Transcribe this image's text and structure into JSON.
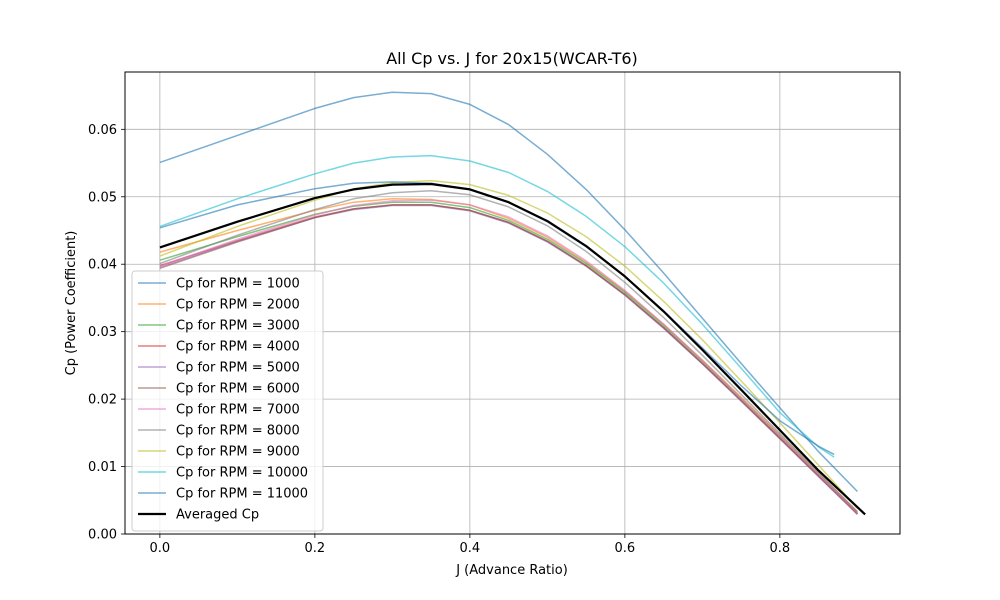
{
  "chart_data": {
    "type": "line",
    "title": "All Cp vs. J for 20x15(WCAR-T6)",
    "xlabel": "J (Advance Ratio)",
    "ylabel": "Cp (Power Coefficient)",
    "xlim": [
      -0.045,
      0.955
    ],
    "ylim": [
      0.0,
      0.0685
    ],
    "xticks": [
      0.0,
      0.2,
      0.4,
      0.6,
      0.8
    ],
    "xtick_labels": [
      "0.0",
      "0.2",
      "0.4",
      "0.6",
      "0.8"
    ],
    "yticks": [
      0.0,
      0.01,
      0.02,
      0.03,
      0.04,
      0.05,
      0.06
    ],
    "ytick_labels": [
      "0.00",
      "0.01",
      "0.02",
      "0.03",
      "0.04",
      "0.05",
      "0.06"
    ],
    "grid": true,
    "legend_position": "lower-left",
    "series": [
      {
        "name": "Cp for RPM = 1000",
        "color": "#1f77b4",
        "x": [
          0.0,
          0.1,
          0.2,
          0.25,
          0.3,
          0.35,
          0.4,
          0.45,
          0.5,
          0.55,
          0.6,
          0.65,
          0.7,
          0.75,
          0.8,
          0.85,
          0.9
        ],
        "y": [
          0.0551,
          0.0591,
          0.0631,
          0.0647,
          0.0655,
          0.0653,
          0.0637,
          0.0607,
          0.0563,
          0.0511,
          0.0451,
          0.0387,
          0.032,
          0.0253,
          0.0187,
          0.0122,
          0.0063
        ]
      },
      {
        "name": "Cp for RPM = 2000",
        "color": "#ff7f0e",
        "x": [
          0.0,
          0.1,
          0.2,
          0.25,
          0.3,
          0.35,
          0.4,
          0.45,
          0.5,
          0.55,
          0.6,
          0.65,
          0.7,
          0.75,
          0.8,
          0.85,
          0.9
        ],
        "y": [
          0.0418,
          0.045,
          0.048,
          0.0492,
          0.0497,
          0.0496,
          0.0488,
          0.0468,
          0.044,
          0.0403,
          0.036,
          0.0311,
          0.0258,
          0.0203,
          0.0147,
          0.009,
          0.0033
        ]
      },
      {
        "name": "Cp for RPM = 3000",
        "color": "#2ca02c",
        "x": [
          0.0,
          0.1,
          0.2,
          0.25,
          0.3,
          0.35,
          0.4,
          0.45,
          0.5,
          0.55,
          0.6,
          0.65,
          0.7,
          0.75,
          0.8,
          0.85,
          0.9
        ],
        "y": [
          0.0406,
          0.0441,
          0.0474,
          0.0486,
          0.0492,
          0.0492,
          0.0484,
          0.0465,
          0.0437,
          0.0401,
          0.0358,
          0.0309,
          0.0256,
          0.0201,
          0.0145,
          0.0088,
          0.0031
        ]
      },
      {
        "name": "Cp for RPM = 4000",
        "color": "#d62728",
        "x": [
          0.0,
          0.1,
          0.2,
          0.25,
          0.3,
          0.35,
          0.4,
          0.45,
          0.5,
          0.55,
          0.6,
          0.65,
          0.7,
          0.75,
          0.8,
          0.85,
          0.9
        ],
        "y": [
          0.0398,
          0.0435,
          0.047,
          0.0482,
          0.0488,
          0.0488,
          0.048,
          0.0462,
          0.0434,
          0.0398,
          0.0355,
          0.0306,
          0.0253,
          0.0198,
          0.0142,
          0.0086,
          0.003
        ]
      },
      {
        "name": "Cp for RPM = 5000",
        "color": "#9467bd",
        "x": [
          0.0,
          0.1,
          0.2,
          0.25,
          0.3,
          0.35,
          0.4,
          0.45,
          0.5,
          0.55,
          0.6,
          0.65,
          0.7,
          0.75,
          0.8,
          0.85,
          0.9
        ],
        "y": [
          0.0396,
          0.0434,
          0.0469,
          0.0481,
          0.0487,
          0.0487,
          0.0479,
          0.0461,
          0.0433,
          0.0397,
          0.0354,
          0.0305,
          0.0252,
          0.0197,
          0.0141,
          0.0085,
          0.0029
        ]
      },
      {
        "name": "Cp for RPM = 6000",
        "color": "#8c564b",
        "x": [
          0.0,
          0.1,
          0.2,
          0.25,
          0.3,
          0.35,
          0.4,
          0.45,
          0.5,
          0.55,
          0.6,
          0.65,
          0.7,
          0.75,
          0.8,
          0.85,
          0.9
        ],
        "y": [
          0.0394,
          0.0433,
          0.0469,
          0.0482,
          0.0488,
          0.0488,
          0.048,
          0.0462,
          0.0434,
          0.0398,
          0.0355,
          0.0306,
          0.0253,
          0.0198,
          0.0142,
          0.0086,
          0.003
        ]
      },
      {
        "name": "Cp for RPM = 7000",
        "color": "#e377c2",
        "x": [
          0.0,
          0.1,
          0.2,
          0.25,
          0.3,
          0.35,
          0.4,
          0.45,
          0.5,
          0.55,
          0.6,
          0.65,
          0.7,
          0.75,
          0.8,
          0.85,
          0.9
        ],
        "y": [
          0.0397,
          0.0437,
          0.0473,
          0.0487,
          0.0494,
          0.0495,
          0.0488,
          0.047,
          0.0442,
          0.0405,
          0.0361,
          0.0311,
          0.0257,
          0.0201,
          0.0145,
          0.0088,
          0.0031
        ]
      },
      {
        "name": "Cp for RPM = 8000",
        "color": "#7f7f7f",
        "x": [
          0.0,
          0.1,
          0.2,
          0.25,
          0.3,
          0.35,
          0.4,
          0.45,
          0.5,
          0.55,
          0.6,
          0.65,
          0.7,
          0.75,
          0.8,
          0.85,
          0.9
        ],
        "y": [
          0.0401,
          0.0443,
          0.0481,
          0.0497,
          0.0506,
          0.0509,
          0.0503,
          0.0485,
          0.0457,
          0.0419,
          0.0373,
          0.0321,
          0.0265,
          0.0207,
          0.0149,
          0.0091,
          0.0033
        ]
      },
      {
        "name": "Cp for RPM = 9000",
        "color": "#bcbd22",
        "x": [
          0.0,
          0.1,
          0.2,
          0.25,
          0.3,
          0.35,
          0.4,
          0.45,
          0.5,
          0.55,
          0.6,
          0.65,
          0.7,
          0.75,
          0.8,
          0.85,
          0.9
        ],
        "y": [
          0.0412,
          0.0456,
          0.0495,
          0.0512,
          0.0521,
          0.0524,
          0.0518,
          0.0502,
          0.0476,
          0.0441,
          0.0397,
          0.0345,
          0.0288,
          0.0227,
          0.0165,
          0.0102,
          0.0038
        ]
      },
      {
        "name": "Cp for RPM = 10000",
        "color": "#17becf",
        "x": [
          0.0,
          0.1,
          0.2,
          0.25,
          0.3,
          0.35,
          0.4,
          0.45,
          0.5,
          0.55,
          0.6,
          0.65,
          0.7,
          0.75,
          0.8,
          0.85,
          0.87
        ],
        "y": [
          0.0456,
          0.0497,
          0.0534,
          0.055,
          0.0559,
          0.0561,
          0.0553,
          0.0536,
          0.0508,
          0.0471,
          0.0426,
          0.0372,
          0.0311,
          0.0246,
          0.018,
          0.0129,
          0.0114
        ]
      },
      {
        "name": "Cp for RPM = 11000",
        "color": "#1f77b4",
        "x": [
          0.0,
          0.1,
          0.2,
          0.25,
          0.3,
          0.35,
          0.4,
          0.45,
          0.5,
          0.55,
          0.6,
          0.65,
          0.7,
          0.75,
          0.8,
          0.85,
          0.87
        ],
        "y": [
          0.0454,
          0.0488,
          0.0512,
          0.052,
          0.0522,
          0.052,
          0.0511,
          0.0492,
          0.0463,
          0.0426,
          0.0382,
          0.0331,
          0.0276,
          0.022,
          0.0168,
          0.013,
          0.0118
        ]
      },
      {
        "name": "Averaged Cp",
        "color": "#000000",
        "x": [
          0.0,
          0.1,
          0.2,
          0.25,
          0.3,
          0.35,
          0.4,
          0.45,
          0.5,
          0.55,
          0.6,
          0.65,
          0.7,
          0.75,
          0.8,
          0.85,
          0.91
        ],
        "y": [
          0.0425,
          0.0463,
          0.0498,
          0.0511,
          0.0518,
          0.0519,
          0.0511,
          0.0492,
          0.0464,
          0.0427,
          0.0382,
          0.033,
          0.0273,
          0.0214,
          0.0154,
          0.0094,
          0.0029
        ]
      }
    ]
  }
}
